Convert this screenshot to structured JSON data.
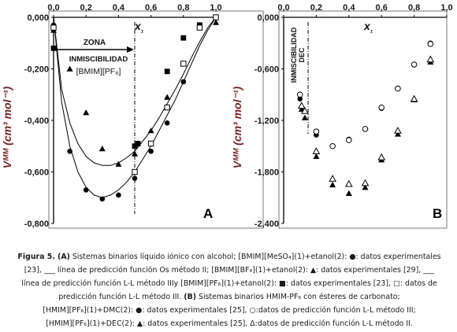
{
  "chart_data": [
    {
      "type": "scatter",
      "panel_label": "A",
      "xlabel": "x₁",
      "ylabel": "Vᴹᴹ (cm³ mol⁻¹)",
      "xlim": [
        0,
        1
      ],
      "ylim": [
        -0.8,
        0
      ],
      "x_ticks": [
        "0,0",
        "0,2",
        "0,4",
        "0,6",
        "0,8",
        "1,0"
      ],
      "y_ticks": [
        "0,000",
        "-0,200",
        "-0,400",
        "-0,600",
        "-0,800"
      ],
      "annotations": [
        "ZONA",
        "INMISCIBILIDAD",
        "[BMIM][PF₆]"
      ],
      "series": [
        {
          "marker": "filled-circle",
          "x": [
            0.0,
            0.1,
            0.2,
            0.3,
            0.4,
            0.5,
            0.6,
            0.7,
            0.8,
            1.0
          ],
          "y": [
            -0.03,
            -0.52,
            -0.67,
            -0.705,
            -0.69,
            -0.625,
            -0.52,
            -0.41,
            -0.25,
            0.0
          ]
        },
        {
          "marker": "filled-triangle",
          "x": [
            0.0,
            0.1,
            0.2,
            0.3,
            0.4,
            0.5,
            0.6,
            0.7,
            0.8,
            1.0
          ],
          "y": [
            -0.05,
            -0.2,
            -0.37,
            -0.51,
            -0.57,
            -0.53,
            -0.44,
            -0.31,
            -0.18,
            -0.02
          ]
        },
        {
          "marker": "filled-square",
          "x": [
            0.0,
            0.5,
            0.52,
            0.7,
            0.8,
            0.9,
            1.0
          ],
          "y": [
            -0.12,
            -0.5,
            -0.49,
            -0.21,
            -0.08,
            -0.03,
            0.0
          ]
        },
        {
          "marker": "open-square",
          "x": [
            0.0,
            0.5,
            0.6,
            0.7,
            0.8,
            0.9,
            1.0
          ],
          "y": [
            -0.04,
            -0.6,
            -0.49,
            -0.35,
            -0.18,
            -0.04,
            0.0
          ]
        }
      ],
      "lines": [
        {
          "x": [
            0,
            0.05,
            0.1,
            0.15,
            0.2,
            0.25,
            0.3,
            0.35,
            0.4,
            0.45,
            0.5,
            0.55,
            0.6,
            0.65,
            0.7,
            0.75,
            0.8,
            0.85,
            0.9,
            0.95,
            1.0
          ],
          "y": [
            0,
            -0.33,
            -0.5,
            -0.6,
            -0.66,
            -0.69,
            -0.7,
            -0.69,
            -0.67,
            -0.64,
            -0.6,
            -0.55,
            -0.5,
            -0.44,
            -0.38,
            -0.32,
            -0.25,
            -0.18,
            -0.11,
            -0.05,
            0
          ]
        },
        {
          "x": [
            0,
            0.05,
            0.1,
            0.15,
            0.2,
            0.25,
            0.3,
            0.35,
            0.4,
            0.45,
            0.5,
            0.55,
            0.6,
            0.65,
            0.7,
            0.75,
            0.8,
            0.85,
            0.9,
            0.95,
            1.0
          ],
          "y": [
            0,
            -0.28,
            -0.41,
            -0.49,
            -0.54,
            -0.565,
            -0.575,
            -0.575,
            -0.565,
            -0.545,
            -0.52,
            -0.48,
            -0.44,
            -0.39,
            -0.335,
            -0.28,
            -0.22,
            -0.155,
            -0.095,
            -0.04,
            0
          ]
        }
      ],
      "vertical_marker_x": 0.5
    },
    {
      "type": "scatter",
      "panel_label": "B",
      "xlabel": "x₁",
      "ylabel": "Vᴹᴹ (cm³ mol⁻¹)",
      "xlim": [
        0,
        1
      ],
      "ylim": [
        -2.4,
        0
      ],
      "x_ticks": [
        "0,0",
        "0,2",
        "0,4",
        "0,6",
        "0,8",
        "1,0"
      ],
      "y_ticks": [
        "0,000",
        "-0,600",
        "-1,200",
        "-1,800",
        "-2,400"
      ],
      "annotations": [
        "INMISCIBILIDAD",
        "DEC"
      ],
      "series": [
        {
          "marker": "filled-circle",
          "x": [
            0.1,
            0.2,
            0.3,
            0.4,
            0.5,
            0.6,
            0.7,
            0.8,
            0.9
          ],
          "y": [
            -0.95,
            -1.37,
            -1.5,
            -1.42,
            -1.3,
            -1.06,
            -0.83,
            -0.55,
            -0.3
          ]
        },
        {
          "marker": "open-circle",
          "x": [
            0.1,
            0.2,
            0.3,
            0.4,
            0.5,
            0.6,
            0.7,
            0.8,
            0.9
          ],
          "y": [
            -0.9,
            -1.33,
            -1.5,
            -1.43,
            -1.3,
            -1.05,
            -0.83,
            -0.55,
            -0.31
          ]
        },
        {
          "marker": "filled-triangle",
          "x": [
            0.11,
            0.13,
            0.2,
            0.3,
            0.4,
            0.5,
            0.6,
            0.7,
            0.8,
            0.9
          ],
          "y": [
            -1.07,
            -1.17,
            -1.62,
            -1.95,
            -2.05,
            -1.98,
            -1.66,
            -1.36,
            -0.96,
            -0.52
          ]
        },
        {
          "marker": "open-triangle",
          "x": [
            0.11,
            0.13,
            0.2,
            0.3,
            0.4,
            0.5,
            0.6,
            0.7,
            0.8,
            0.9
          ],
          "y": [
            -1.03,
            -1.09,
            -1.56,
            -1.88,
            -1.94,
            -1.93,
            -1.63,
            -1.32,
            -0.95,
            -0.49
          ]
        }
      ],
      "vertical_marker_x": 0.15
    }
  ],
  "caption": {
    "lines": [
      [
        {
          "t": "Figura 5. (A)",
          "b": true
        },
        {
          "t": " Sistemas binarios líquido iónico con alcohol; [BMIM][MeSO₄](1)+etanol(2): ●: datos experimentales"
        }
      ],
      [
        {
          "t": "[23], ___ línea de predicción función Os método II; [BMIM][BF₄](1)+etanol(2): ▲: datos experimentales [29], ___"
        }
      ],
      [
        {
          "t": "línea de predicción función L-L método IIIy [BMIM][PF₆](1)+etanol(2): ■: datos experimentales [23], □:  datos de"
        }
      ],
      [
        {
          "t": "predicción función L-L método III. "
        },
        {
          "t": "(B)",
          "b": true
        },
        {
          "t": " Sistemas binarios HMIM-PF₆ con ésteres de carbonato;"
        }
      ],
      [
        {
          "t": "[HMIM][PF₆](1)+DMC(2): ●: datos experimentales [25], ○:datos de predicción función L-L método III;"
        }
      ],
      [
        {
          "t": "[HMIM][PF₆](1)+DEC(2): ▲: datos experimentales [25], Δ:datos de predicción función L-L método II."
        }
      ]
    ]
  }
}
